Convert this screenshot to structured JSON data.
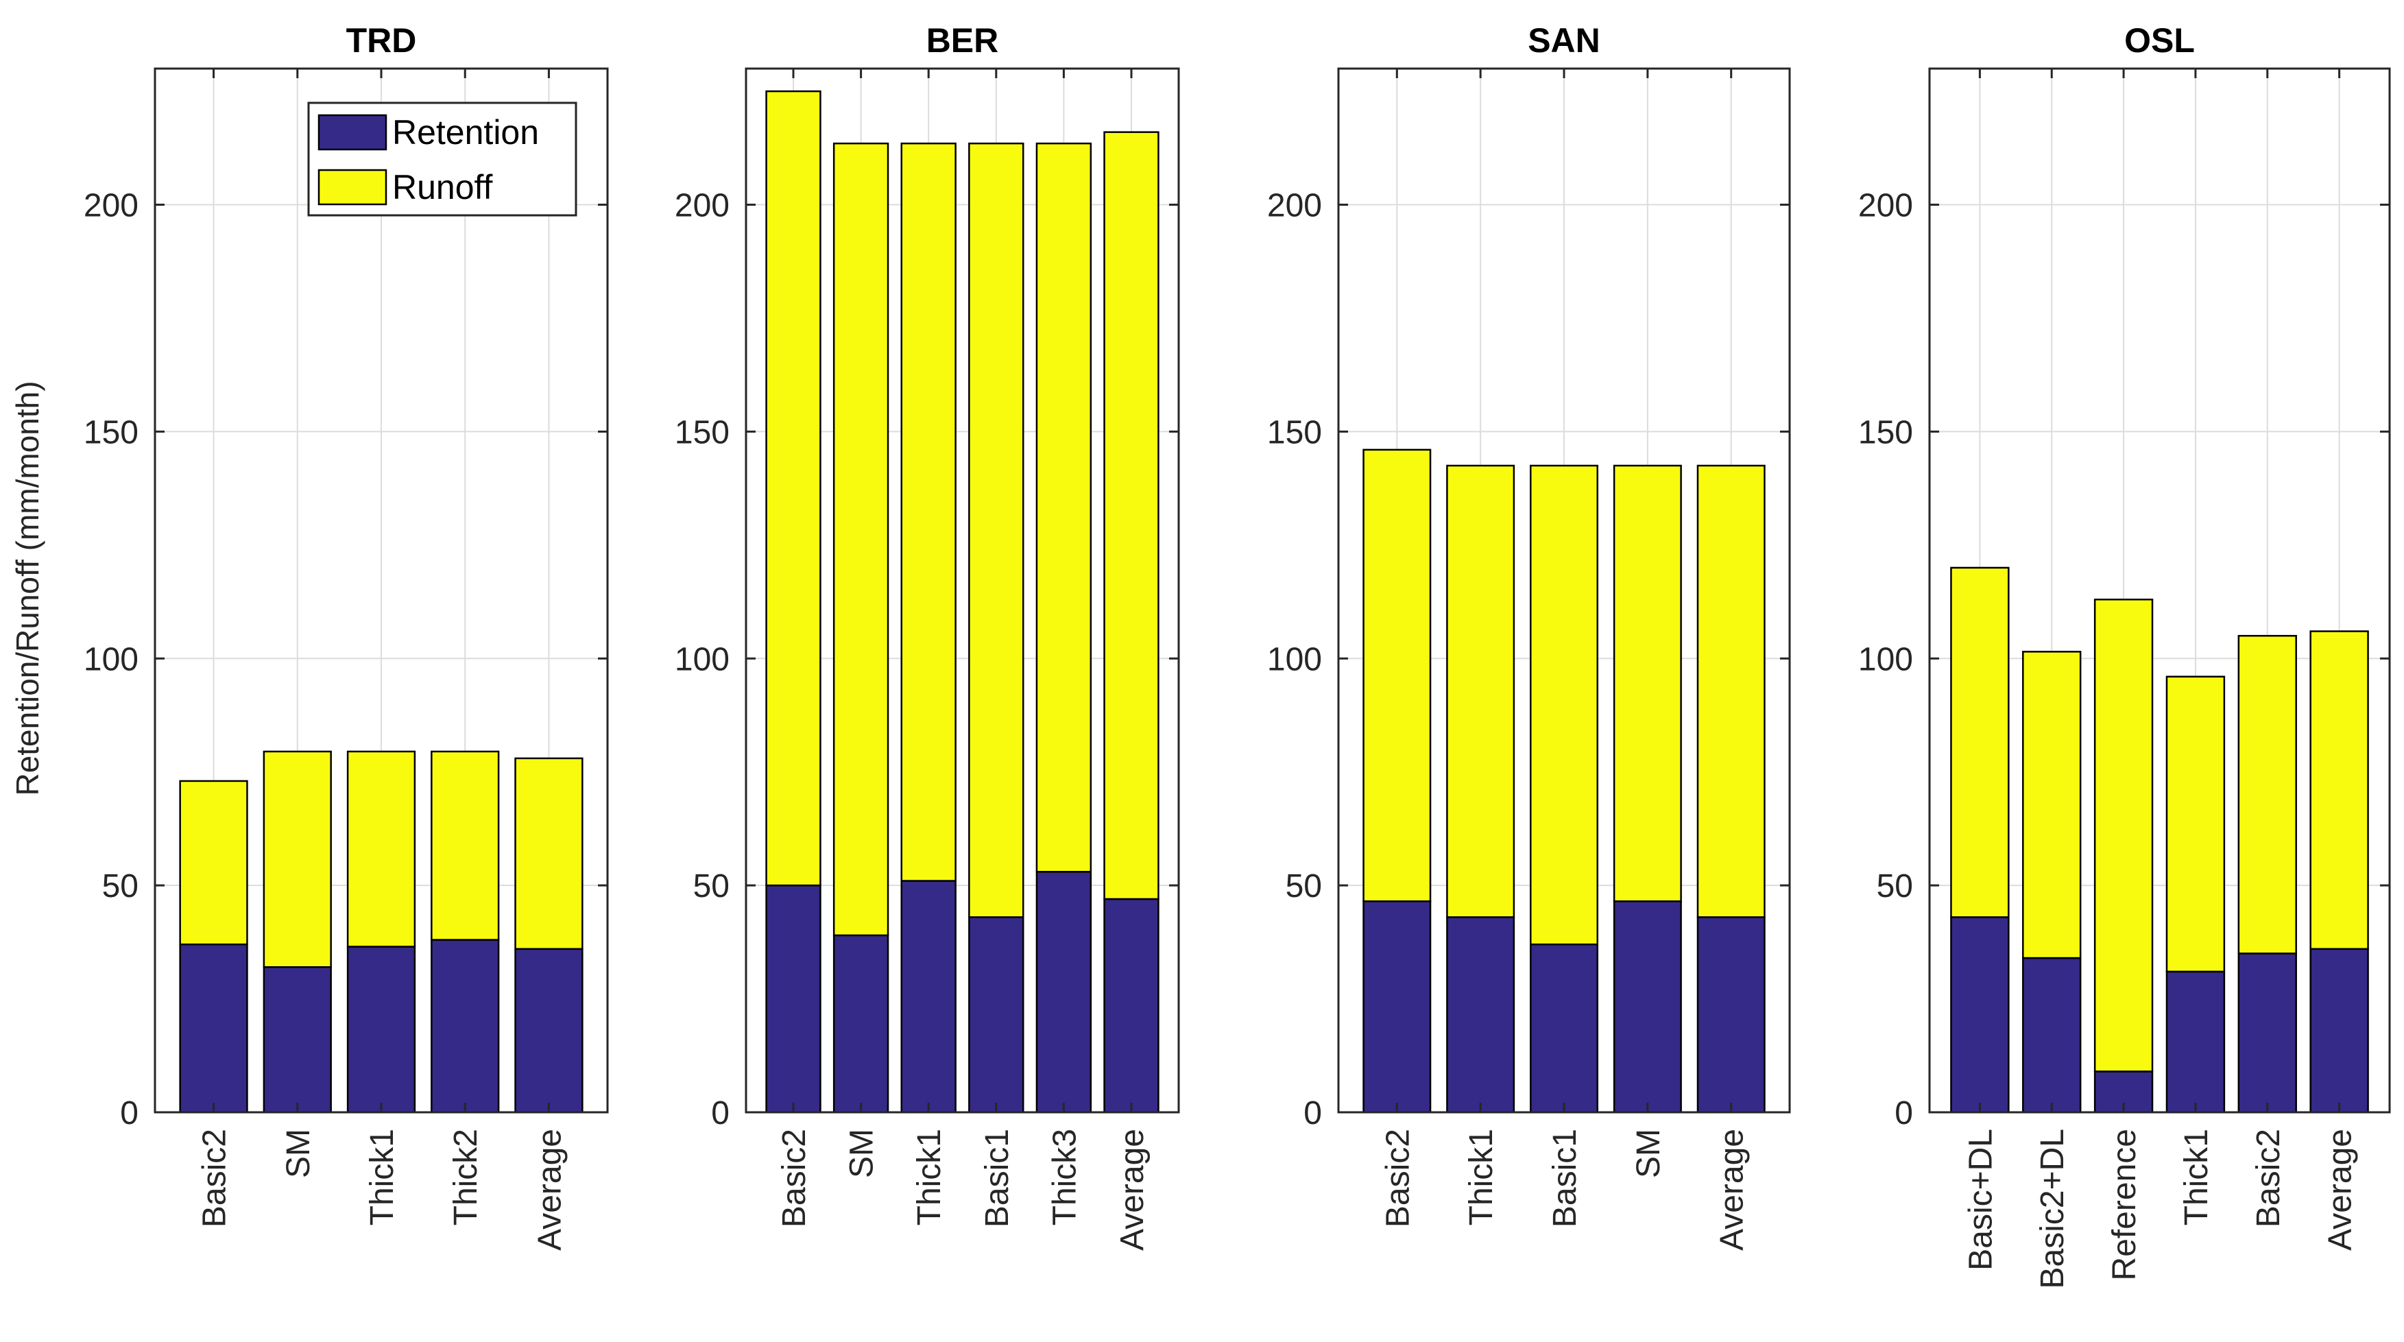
{
  "chart_data": {
    "type": "bar",
    "stacked": true,
    "ylabel": "Retention/Runoff (mm/month)",
    "ylim": [
      0,
      230
    ],
    "yticks": [
      0,
      50,
      100,
      150,
      200
    ],
    "grid": true,
    "colors": {
      "retention": "#352a87",
      "runoff": "#f9fb0e"
    },
    "legend": {
      "placement": "top-right",
      "panel": 0,
      "entries": [
        "Retention",
        "Runoff"
      ]
    },
    "panels": [
      {
        "title": "TRD",
        "categories": [
          "Basic2",
          "SM",
          "Thick1",
          "Thick2",
          "Average"
        ],
        "series": [
          {
            "name": "Retention",
            "values": [
              37,
              32,
              36.5,
              38,
              36
            ]
          },
          {
            "name": "Runoff",
            "values": [
              36,
              47.5,
              43,
              41.5,
              42
            ]
          }
        ]
      },
      {
        "title": "BER",
        "categories": [
          "Basic2",
          "SM",
          "Thick1",
          "Basic1",
          "Thick3",
          "Average"
        ],
        "series": [
          {
            "name": "Retention",
            "values": [
              50,
              39,
              51,
              43,
              53,
              47
            ]
          },
          {
            "name": "Runoff",
            "values": [
              175,
              174.5,
              162.5,
              170.5,
              160.5,
              169
            ]
          }
        ]
      },
      {
        "title": "SAN",
        "categories": [
          "Basic2",
          "Thick1",
          "Basic1",
          "SM",
          "Average"
        ],
        "series": [
          {
            "name": "Retention",
            "values": [
              46.5,
              43,
              37,
              46.5,
              43
            ]
          },
          {
            "name": "Runoff",
            "values": [
              99.5,
              99.5,
              105.5,
              96,
              99.5
            ]
          }
        ]
      },
      {
        "title": "OSL",
        "categories": [
          "Basic+DL",
          "Basic2+DL",
          "Reference",
          "Thick1",
          "Basic2",
          "Average"
        ],
        "series": [
          {
            "name": "Retention",
            "values": [
              43,
              34,
              9,
              31,
              35,
              36
            ]
          },
          {
            "name": "Runoff",
            "values": [
              77,
              67.5,
              104,
              65,
              70,
              70
            ]
          }
        ]
      }
    ]
  }
}
